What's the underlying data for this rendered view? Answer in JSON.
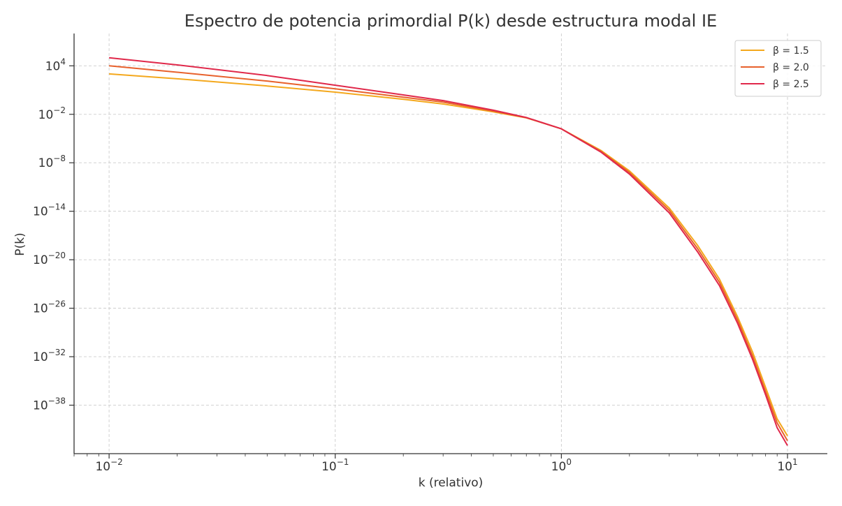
{
  "chart_data": {
    "type": "line",
    "title": "Espectro de potencia primordial P(k) desde estructura modal IE",
    "xlabel": "k (relativo)",
    "ylabel": "P(k)",
    "xscale": "log",
    "yscale": "log",
    "xlim": [
      0.007,
      15
    ],
    "ylim": [
      1e-44,
      100000000.0
    ],
    "grid": true,
    "legend_position": "top-right",
    "x_ticks": [
      {
        "base": "10",
        "exp": "−2",
        "value": 0.01
      },
      {
        "base": "10",
        "exp": "−1",
        "value": 0.1
      },
      {
        "base": "10",
        "exp": "0",
        "value": 1
      },
      {
        "base": "10",
        "exp": "1",
        "value": 10
      }
    ],
    "y_ticks": [
      {
        "base": "10",
        "exp": "4",
        "value": 10000.0
      },
      {
        "base": "10",
        "exp": "−2",
        "value": 0.01
      },
      {
        "base": "10",
        "exp": "−8",
        "value": 1e-08
      },
      {
        "base": "10",
        "exp": "−14",
        "value": 1e-14
      },
      {
        "base": "10",
        "exp": "−20",
        "value": 1e-20
      },
      {
        "base": "10",
        "exp": "−26",
        "value": 1e-26
      },
      {
        "base": "10",
        "exp": "−32",
        "value": 1e-32
      },
      {
        "base": "10",
        "exp": "−38",
        "value": 1e-38
      }
    ],
    "x": [
      0.01,
      0.02,
      0.05,
      0.1,
      0.2,
      0.3,
      0.5,
      0.7,
      1.0,
      1.5,
      2.0,
      3.0,
      4.0,
      5.0,
      6.0,
      7.0,
      8.0,
      9.0,
      10.0
    ],
    "series": [
      {
        "name": "β = 1.5",
        "color": "#f4a81d",
        "values": [
          1000.0,
          250.0,
          32.0,
          5.6,
          0.71,
          0.19,
          0.02,
          0.0036,
          0.00016,
          3.2e-07,
          1e-09,
          2.5e-14,
          6.3e-19,
          4e-23,
          1e-27,
          4e-32,
          1.6e-36,
          2e-40,
          1.6e-42
        ]
      },
      {
        "name": "β = 2.0",
        "color": "#e8612c",
        "values": [
          10000.0,
          1600.0,
          130.0,
          14.0,
          1.3,
          0.32,
          0.025,
          0.0039,
          0.00016,
          2.5e-07,
          6.3e-10,
          1.3e-14,
          2.5e-19,
          1.6e-23,
          4e-28,
          1.3e-32,
          5e-37,
          6.3e-41,
          4e-43
        ]
      },
      {
        "name": "β = 2.5",
        "color": "#e0284a",
        "values": [
          100000.0,
          13000.0,
          630.0,
          40.0,
          2.5,
          0.5,
          0.032,
          0.004,
          0.00016,
          2e-07,
          4e-10,
          6.3e-15,
          1e-19,
          6.3e-24,
          1.6e-28,
          5e-33,
          2e-37,
          1.6e-41,
          1e-43
        ]
      }
    ]
  }
}
